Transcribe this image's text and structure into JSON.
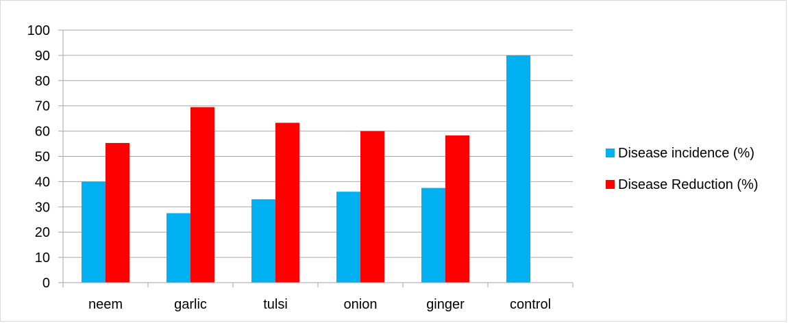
{
  "chart_data": {
    "type": "bar",
    "categories": [
      "neem",
      "garlic",
      "tulsi",
      "onion",
      "ginger",
      "control"
    ],
    "series": [
      {
        "name": "Disease incidence (%)",
        "color": "#00b0f0",
        "values": [
          40,
          27.5,
          33,
          36,
          37.5,
          90
        ]
      },
      {
        "name": "Disease Reduction (%)",
        "color": "#ff0000",
        "values": [
          55.3,
          69.5,
          63.3,
          60,
          58.3,
          null
        ]
      }
    ],
    "title": "",
    "xlabel": "",
    "ylabel": "",
    "ylim": [
      0,
      100
    ],
    "yticks": [
      0,
      10,
      20,
      30,
      40,
      50,
      60,
      70,
      80,
      90,
      100
    ],
    "grid": true,
    "legend_position": "right"
  }
}
